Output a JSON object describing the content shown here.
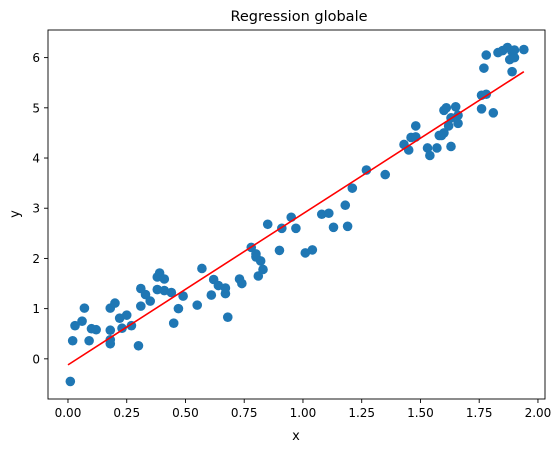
{
  "chart_data": {
    "type": "scatter",
    "title": "Regression globale",
    "xlabel": "x",
    "ylabel": "y",
    "xlim": [
      -0.085,
      2.03
    ],
    "ylim": [
      -0.8,
      6.55
    ],
    "xticks": [
      "0.00",
      "0.25",
      "0.50",
      "0.75",
      "1.00",
      "1.25",
      "1.50",
      "1.75",
      "2.00"
    ],
    "xtick_values": [
      0,
      0.25,
      0.5,
      0.75,
      1.0,
      1.25,
      1.5,
      1.75,
      2.0
    ],
    "yticks": [
      "0",
      "1",
      "2",
      "3",
      "4",
      "5",
      "6"
    ],
    "ytick_values": [
      0,
      1,
      2,
      3,
      4,
      5,
      6
    ],
    "grid": false,
    "scatter_color": "#1f77b4",
    "line_color": "#ff0000",
    "points": [
      [
        0.01,
        -0.45
      ],
      [
        0.02,
        0.36
      ],
      [
        0.03,
        0.66
      ],
      [
        0.06,
        0.75
      ],
      [
        0.07,
        1.01
      ],
      [
        0.09,
        0.36
      ],
      [
        0.1,
        0.6
      ],
      [
        0.12,
        0.58
      ],
      [
        0.18,
        0.3
      ],
      [
        0.18,
        0.38
      ],
      [
        0.18,
        0.57
      ],
      [
        0.18,
        1.01
      ],
      [
        0.2,
        1.11
      ],
      [
        0.22,
        0.81
      ],
      [
        0.23,
        0.61
      ],
      [
        0.25,
        0.87
      ],
      [
        0.27,
        0.66
      ],
      [
        0.3,
        0.26
      ],
      [
        0.31,
        1.05
      ],
      [
        0.31,
        1.4
      ],
      [
        0.33,
        1.28
      ],
      [
        0.35,
        1.15
      ],
      [
        0.38,
        1.38
      ],
      [
        0.38,
        1.63
      ],
      [
        0.39,
        1.71
      ],
      [
        0.41,
        1.36
      ],
      [
        0.41,
        1.59
      ],
      [
        0.44,
        1.32
      ],
      [
        0.45,
        0.71
      ],
      [
        0.47,
        1.0
      ],
      [
        0.49,
        1.25
      ],
      [
        0.55,
        1.07
      ],
      [
        0.57,
        1.8
      ],
      [
        0.61,
        1.27
      ],
      [
        0.62,
        1.58
      ],
      [
        0.64,
        1.46
      ],
      [
        0.67,
        1.3
      ],
      [
        0.67,
        1.41
      ],
      [
        0.68,
        0.83
      ],
      [
        0.73,
        1.59
      ],
      [
        0.74,
        1.5
      ],
      [
        0.78,
        2.22
      ],
      [
        0.8,
        2.03
      ],
      [
        0.8,
        2.09
      ],
      [
        0.81,
        1.65
      ],
      [
        0.82,
        1.95
      ],
      [
        0.83,
        1.78
      ],
      [
        0.85,
        2.68
      ],
      [
        0.9,
        2.16
      ],
      [
        0.91,
        2.6
      ],
      [
        0.95,
        2.82
      ],
      [
        0.97,
        2.6
      ],
      [
        1.01,
        2.11
      ],
      [
        1.04,
        2.17
      ],
      [
        1.08,
        2.88
      ],
      [
        1.11,
        2.9
      ],
      [
        1.13,
        2.62
      ],
      [
        1.18,
        3.06
      ],
      [
        1.19,
        2.64
      ],
      [
        1.21,
        3.4
      ],
      [
        1.27,
        3.76
      ],
      [
        1.35,
        3.67
      ],
      [
        1.43,
        4.27
      ],
      [
        1.45,
        4.16
      ],
      [
        1.46,
        4.41
      ],
      [
        1.48,
        4.64
      ],
      [
        1.48,
        4.42
      ],
      [
        1.53,
        4.2
      ],
      [
        1.54,
        4.05
      ],
      [
        1.57,
        4.2
      ],
      [
        1.58,
        4.45
      ],
      [
        1.59,
        4.45
      ],
      [
        1.6,
        4.5
      ],
      [
        1.6,
        4.95
      ],
      [
        1.61,
        5.0
      ],
      [
        1.62,
        4.64
      ],
      [
        1.63,
        4.23
      ],
      [
        1.63,
        4.8
      ],
      [
        1.65,
        5.02
      ],
      [
        1.66,
        4.69
      ],
      [
        1.66,
        4.85
      ],
      [
        1.76,
        5.25
      ],
      [
        1.76,
        4.98
      ],
      [
        1.77,
        5.79
      ],
      [
        1.78,
        6.05
      ],
      [
        1.78,
        5.27
      ],
      [
        1.81,
        4.9
      ],
      [
        1.83,
        6.1
      ],
      [
        1.85,
        6.14
      ],
      [
        1.87,
        6.2
      ],
      [
        1.88,
        5.96
      ],
      [
        1.89,
        6.12
      ],
      [
        1.89,
        5.72
      ],
      [
        1.9,
        6.0
      ],
      [
        1.9,
        6.15
      ],
      [
        1.94,
        6.16
      ]
    ],
    "fit_line": {
      "x": [
        0.0,
        1.94
      ],
      "y": [
        -0.12,
        5.72
      ]
    }
  }
}
